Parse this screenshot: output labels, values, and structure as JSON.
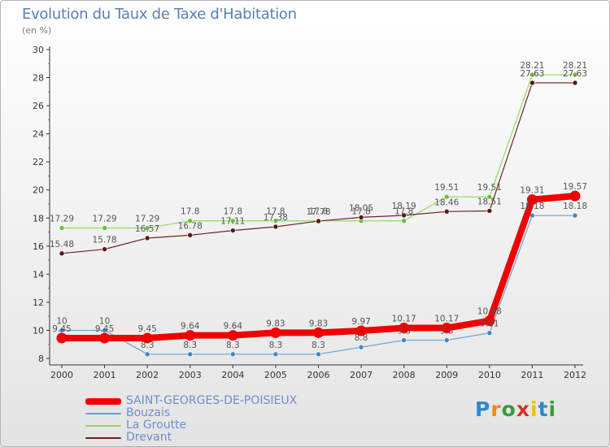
{
  "title": "Evolution du Taux de Taxe d'Habitation",
  "subtitle": "(en %)",
  "logo": {
    "letters": [
      "P",
      "r",
      "o",
      "x",
      "i",
      "t",
      "i"
    ],
    "colors": [
      "#2f89c9",
      "#e88a1c",
      "#3a9a3a",
      "#d4332b",
      "#e8c21c",
      "#2f89c9",
      "#3a9a3a"
    ]
  },
  "chart_data": {
    "type": "line",
    "title": "Evolution du Taux de Taxe d'Habitation",
    "ylabel": "(en %)",
    "xlabel": "",
    "categories": [
      "2000",
      "2001",
      "2002",
      "2003",
      "2004",
      "2005",
      "2006",
      "2007",
      "2008",
      "2009",
      "2010",
      "2011",
      "2012"
    ],
    "ylim": [
      8,
      30
    ],
    "yticks": [
      8,
      10,
      12,
      14,
      16,
      18,
      20,
      22,
      24,
      26,
      28,
      30
    ],
    "grid": false,
    "series": [
      {
        "name": "La Groutte",
        "color": "#8fdc5f",
        "marker": "#6cbf3a",
        "width": 1.2,
        "values": [
          17.29,
          17.29,
          17.29,
          17.8,
          17.8,
          17.8,
          17.8,
          17.8,
          17.8,
          19.51,
          19.51,
          28.21,
          28.21
        ],
        "labels": [
          "17.29",
          "17.29",
          "17.29",
          "17.8",
          "17.8",
          "17.8",
          "17.8",
          "17.8",
          "17.8",
          "19.51",
          "19.51",
          "28.21",
          "28.21"
        ]
      },
      {
        "name": "Drevant",
        "color": "#6e2323",
        "marker": "#5a1717",
        "width": 1.2,
        "values": [
          15.48,
          15.78,
          16.57,
          16.78,
          17.11,
          17.38,
          17.78,
          18.05,
          18.19,
          18.46,
          18.51,
          27.63,
          27.63
        ],
        "labels": [
          "15.48",
          "15.78",
          "16.57",
          "16.78",
          "17.11",
          "17.38",
          "17.78",
          "18.05",
          "18.19",
          "18.46",
          "18.51",
          "27.63",
          "27.63"
        ]
      },
      {
        "name": "Bouzais",
        "color": "#6e9fd0",
        "marker": "#3f86c8",
        "width": 1.2,
        "values": [
          10,
          10,
          8.3,
          8.3,
          8.3,
          8.3,
          8.3,
          8.8,
          9.3,
          9.3,
          9.81,
          18.18,
          18.18
        ],
        "labels": [
          "10",
          "10",
          "8.3",
          "8.3",
          "8.3",
          "8.3",
          "8.3",
          "8.8",
          "9.3",
          "9.3",
          "9.81",
          "18.18",
          "18.18"
        ]
      },
      {
        "name": "SAINT-GEORGES-DE-POISIEUX",
        "color": "#f00000",
        "marker": "#f00000",
        "width": 8,
        "values": [
          9.45,
          9.45,
          9.45,
          9.64,
          9.64,
          9.83,
          9.83,
          9.97,
          10.17,
          10.17,
          10.68,
          19.31,
          19.57
        ],
        "labels": [
          "9.45",
          "9.45",
          "9.45",
          "9.64",
          "9.64",
          "9.83",
          "9.83",
          "9.97",
          "10.17",
          "10.17",
          "10.68",
          "19.31",
          "19.57"
        ]
      }
    ],
    "legend": {
      "position": "bottom-left",
      "order": [
        "SAINT-GEORGES-DE-POISIEUX",
        "Bouzais",
        "La Groutte",
        "Drevant"
      ]
    }
  }
}
